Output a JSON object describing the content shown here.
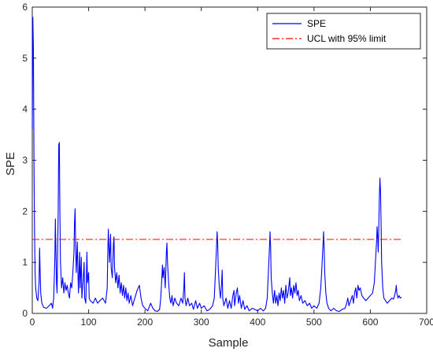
{
  "chart_data": {
    "type": "line",
    "title": "",
    "xlabel": "Sample",
    "ylabel": "SPE",
    "xlim": [
      0,
      700
    ],
    "ylim": [
      0,
      6
    ],
    "xticks": [
      0,
      100,
      200,
      300,
      400,
      500,
      600,
      700
    ],
    "yticks": [
      0,
      1,
      2,
      3,
      4,
      5,
      6
    ],
    "grid": false,
    "legend_position": "top-right",
    "series": [
      {
        "name": "SPE",
        "color": "#0000ff",
        "style": "solid",
        "points": [
          [
            0,
            3.6
          ],
          [
            1,
            5.8
          ],
          [
            2,
            5.2
          ],
          [
            3,
            3.0
          ],
          [
            4,
            1.6
          ],
          [
            5,
            0.8
          ],
          [
            6,
            0.5
          ],
          [
            8,
            0.3
          ],
          [
            10,
            0.25
          ],
          [
            12,
            0.6
          ],
          [
            13,
            1.28
          ],
          [
            14,
            0.8
          ],
          [
            15,
            0.4
          ],
          [
            17,
            0.2
          ],
          [
            20,
            0.12
          ],
          [
            25,
            0.1
          ],
          [
            30,
            0.15
          ],
          [
            34,
            0.2
          ],
          [
            36,
            0.1
          ],
          [
            38,
            0.3
          ],
          [
            40,
            1.05
          ],
          [
            41,
            1.85
          ],
          [
            42,
            1.2
          ],
          [
            43,
            0.6
          ],
          [
            44,
            0.4
          ],
          [
            46,
            2.0
          ],
          [
            47,
            3.3
          ],
          [
            48,
            3.35
          ],
          [
            49,
            2.0
          ],
          [
            50,
            1.0
          ],
          [
            52,
            0.5
          ],
          [
            54,
            0.7
          ],
          [
            56,
            0.4
          ],
          [
            58,
            0.6
          ],
          [
            60,
            0.45
          ],
          [
            62,
            0.55
          ],
          [
            64,
            0.4
          ],
          [
            66,
            0.3
          ],
          [
            68,
            0.6
          ],
          [
            70,
            0.5
          ],
          [
            72,
            0.8
          ],
          [
            74,
            1.2
          ],
          [
            75,
            1.8
          ],
          [
            76,
            2.05
          ],
          [
            77,
            1.3
          ],
          [
            78,
            0.8
          ],
          [
            80,
            1.4
          ],
          [
            81,
            0.8
          ],
          [
            82,
            0.4
          ],
          [
            84,
            1.2
          ],
          [
            85,
            0.5
          ],
          [
            87,
            1.1
          ],
          [
            88,
            0.3
          ],
          [
            90,
            0.6
          ],
          [
            92,
            1.0
          ],
          [
            93,
            0.3
          ],
          [
            95,
            0.2
          ],
          [
            97,
            1.2
          ],
          [
            98,
            0.6
          ],
          [
            100,
            0.8
          ],
          [
            101,
            0.3
          ],
          [
            103,
            0.25
          ],
          [
            108,
            0.2
          ],
          [
            112,
            0.3
          ],
          [
            116,
            0.2
          ],
          [
            120,
            0.25
          ],
          [
            125,
            0.3
          ],
          [
            130,
            0.2
          ],
          [
            133,
            0.5
          ],
          [
            134,
            1.2
          ],
          [
            135,
            1.65
          ],
          [
            136,
            1.3
          ],
          [
            137,
            1.0
          ],
          [
            139,
            1.55
          ],
          [
            140,
            0.9
          ],
          [
            142,
            0.7
          ],
          [
            144,
            1.35
          ],
          [
            145,
            1.5
          ],
          [
            146,
            0.9
          ],
          [
            148,
            0.6
          ],
          [
            150,
            0.8
          ],
          [
            152,
            0.5
          ],
          [
            154,
            0.75
          ],
          [
            156,
            0.4
          ],
          [
            158,
            0.6
          ],
          [
            160,
            0.35
          ],
          [
            162,
            0.55
          ],
          [
            164,
            0.3
          ],
          [
            166,
            0.5
          ],
          [
            168,
            0.25
          ],
          [
            170,
            0.4
          ],
          [
            172,
            0.2
          ],
          [
            175,
            0.35
          ],
          [
            178,
            0.15
          ],
          [
            182,
            0.3
          ],
          [
            186,
            0.45
          ],
          [
            190,
            0.55
          ],
          [
            193,
            0.3
          ],
          [
            196,
            0.15
          ],
          [
            200,
            0.1
          ],
          [
            205,
            0.05
          ],
          [
            210,
            0.2
          ],
          [
            214,
            0.1
          ],
          [
            218,
            0.05
          ],
          [
            222,
            0.04
          ],
          [
            226,
            0.08
          ],
          [
            228,
            0.3
          ],
          [
            230,
            0.7
          ],
          [
            231,
            0.95
          ],
          [
            232,
            0.7
          ],
          [
            234,
            0.9
          ],
          [
            236,
            0.5
          ],
          [
            238,
            1.2
          ],
          [
            239,
            1.38
          ],
          [
            240,
            1.0
          ],
          [
            242,
            0.6
          ],
          [
            244,
            0.3
          ],
          [
            246,
            0.2
          ],
          [
            248,
            0.35
          ],
          [
            250,
            0.15
          ],
          [
            253,
            0.3
          ],
          [
            256,
            0.2
          ],
          [
            260,
            0.15
          ],
          [
            264,
            0.3
          ],
          [
            267,
            0.2
          ],
          [
            269,
            0.5
          ],
          [
            270,
            0.8
          ],
          [
            271,
            0.3
          ],
          [
            273,
            0.15
          ],
          [
            276,
            0.3
          ],
          [
            279,
            0.15
          ],
          [
            283,
            0.2
          ],
          [
            286,
            0.08
          ],
          [
            290,
            0.25
          ],
          [
            293,
            0.1
          ],
          [
            297,
            0.2
          ],
          [
            300,
            0.1
          ],
          [
            305,
            0.15
          ],
          [
            310,
            0.05
          ],
          [
            315,
            0.08
          ],
          [
            320,
            0.15
          ],
          [
            323,
            0.3
          ],
          [
            325,
            0.8
          ],
          [
            327,
            1.3
          ],
          [
            328,
            1.6
          ],
          [
            329,
            1.4
          ],
          [
            330,
            0.9
          ],
          [
            332,
            0.5
          ],
          [
            334,
            0.3
          ],
          [
            336,
            0.6
          ],
          [
            337,
            0.85
          ],
          [
            338,
            0.3
          ],
          [
            340,
            0.15
          ],
          [
            344,
            0.3
          ],
          [
            347,
            0.1
          ],
          [
            350,
            0.25
          ],
          [
            353,
            0.1
          ],
          [
            356,
            0.35
          ],
          [
            358,
            0.45
          ],
          [
            359,
            0.15
          ],
          [
            362,
            0.4
          ],
          [
            364,
            0.5
          ],
          [
            366,
            0.2
          ],
          [
            368,
            0.35
          ],
          [
            371,
            0.1
          ],
          [
            374,
            0.25
          ],
          [
            377,
            0.08
          ],
          [
            381,
            0.15
          ],
          [
            385,
            0.05
          ],
          [
            390,
            0.1
          ],
          [
            395,
            0.08
          ],
          [
            400,
            0.05
          ],
          [
            405,
            0.1
          ],
          [
            410,
            0.05
          ],
          [
            414,
            0.1
          ],
          [
            417,
            0.3
          ],
          [
            419,
            0.8
          ],
          [
            421,
            1.3
          ],
          [
            422,
            1.6
          ],
          [
            423,
            1.3
          ],
          [
            424,
            0.7
          ],
          [
            426,
            0.4
          ],
          [
            428,
            0.2
          ],
          [
            430,
            0.45
          ],
          [
            432,
            0.2
          ],
          [
            434,
            0.35
          ],
          [
            436,
            0.15
          ],
          [
            438,
            0.4
          ],
          [
            440,
            0.25
          ],
          [
            442,
            0.5
          ],
          [
            444,
            0.3
          ],
          [
            446,
            0.45
          ],
          [
            448,
            0.2
          ],
          [
            450,
            0.55
          ],
          [
            452,
            0.3
          ],
          [
            454,
            0.4
          ],
          [
            456,
            0.6
          ],
          [
            457,
            0.7
          ],
          [
            458,
            0.35
          ],
          [
            460,
            0.5
          ],
          [
            462,
            0.3
          ],
          [
            464,
            0.55
          ],
          [
            466,
            0.4
          ],
          [
            468,
            0.6
          ],
          [
            470,
            0.35
          ],
          [
            472,
            0.45
          ],
          [
            474,
            0.25
          ],
          [
            477,
            0.35
          ],
          [
            480,
            0.2
          ],
          [
            484,
            0.25
          ],
          [
            488,
            0.15
          ],
          [
            492,
            0.2
          ],
          [
            496,
            0.1
          ],
          [
            500,
            0.15
          ],
          [
            505,
            0.1
          ],
          [
            509,
            0.2
          ],
          [
            512,
            0.5
          ],
          [
            514,
            0.9
          ],
          [
            516,
            1.35
          ],
          [
            517,
            1.6
          ],
          [
            518,
            1.3
          ],
          [
            519,
            0.8
          ],
          [
            521,
            0.4
          ],
          [
            523,
            0.2
          ],
          [
            526,
            0.1
          ],
          [
            530,
            0.05
          ],
          [
            535,
            0.1
          ],
          [
            540,
            0.05
          ],
          [
            545,
            0.04
          ],
          [
            550,
            0.08
          ],
          [
            555,
            0.1
          ],
          [
            558,
            0.2
          ],
          [
            560,
            0.3
          ],
          [
            562,
            0.15
          ],
          [
            565,
            0.25
          ],
          [
            568,
            0.35
          ],
          [
            570,
            0.2
          ],
          [
            572,
            0.4
          ],
          [
            574,
            0.5
          ],
          [
            576,
            0.3
          ],
          [
            578,
            0.55
          ],
          [
            580,
            0.45
          ],
          [
            582,
            0.5
          ],
          [
            585,
            0.35
          ],
          [
            588,
            0.3
          ],
          [
            592,
            0.25
          ],
          [
            596,
            0.3
          ],
          [
            600,
            0.35
          ],
          [
            604,
            0.4
          ],
          [
            607,
            0.6
          ],
          [
            609,
            1.0
          ],
          [
            611,
            1.4
          ],
          [
            612,
            1.7
          ],
          [
            613,
            1.5
          ],
          [
            614,
            1.2
          ],
          [
            615,
            1.7
          ],
          [
            616,
            2.3
          ],
          [
            617,
            2.65
          ],
          [
            618,
            2.4
          ],
          [
            619,
            1.8
          ],
          [
            620,
            1.0
          ],
          [
            622,
            0.5
          ],
          [
            624,
            0.3
          ],
          [
            627,
            0.25
          ],
          [
            630,
            0.2
          ],
          [
            634,
            0.25
          ],
          [
            638,
            0.3
          ],
          [
            641,
            0.28
          ],
          [
            643,
            0.35
          ],
          [
            645,
            0.45
          ],
          [
            646,
            0.55
          ],
          [
            647,
            0.4
          ],
          [
            649,
            0.3
          ],
          [
            651,
            0.35
          ],
          [
            653,
            0.3
          ],
          [
            655,
            0.32
          ]
        ]
      },
      {
        "name": "UCL with 95% limit",
        "color": "#ff0000",
        "style": "dash-dot",
        "points": [
          [
            0,
            1.45
          ],
          [
            655,
            1.45
          ]
        ]
      }
    ]
  }
}
